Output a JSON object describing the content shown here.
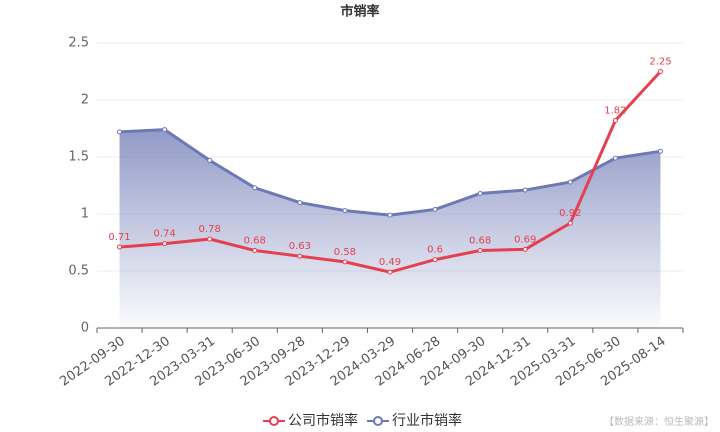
{
  "chart_data": {
    "type": "line",
    "title": "市销率",
    "categories": [
      "2022-09-30",
      "2022-12-30",
      "2023-03-31",
      "2023-06-30",
      "2023-09-28",
      "2023-12-29",
      "2024-03-29",
      "2024-06-28",
      "2024-09-30",
      "2024-12-31",
      "2025-03-31",
      "2025-06-30",
      "2025-08-14"
    ],
    "series": [
      {
        "name": "公司市销率",
        "color": "#e5404f",
        "values": [
          0.71,
          0.74,
          0.78,
          0.68,
          0.63,
          0.58,
          0.49,
          0.6,
          0.68,
          0.69,
          0.92,
          1.82,
          2.25
        ],
        "labels": true
      },
      {
        "name": "行业市销率",
        "color": "#6d79b5",
        "values": [
          1.72,
          1.74,
          1.47,
          1.23,
          1.1,
          1.03,
          0.99,
          1.04,
          1.18,
          1.21,
          1.28,
          1.49,
          1.55
        ],
        "area": true
      }
    ],
    "ylim": [
      0,
      2.5
    ],
    "yticks": [
      0,
      0.5,
      1,
      1.5,
      2,
      2.5
    ],
    "grid": true,
    "source": "【数据来源：恒生聚源】"
  }
}
